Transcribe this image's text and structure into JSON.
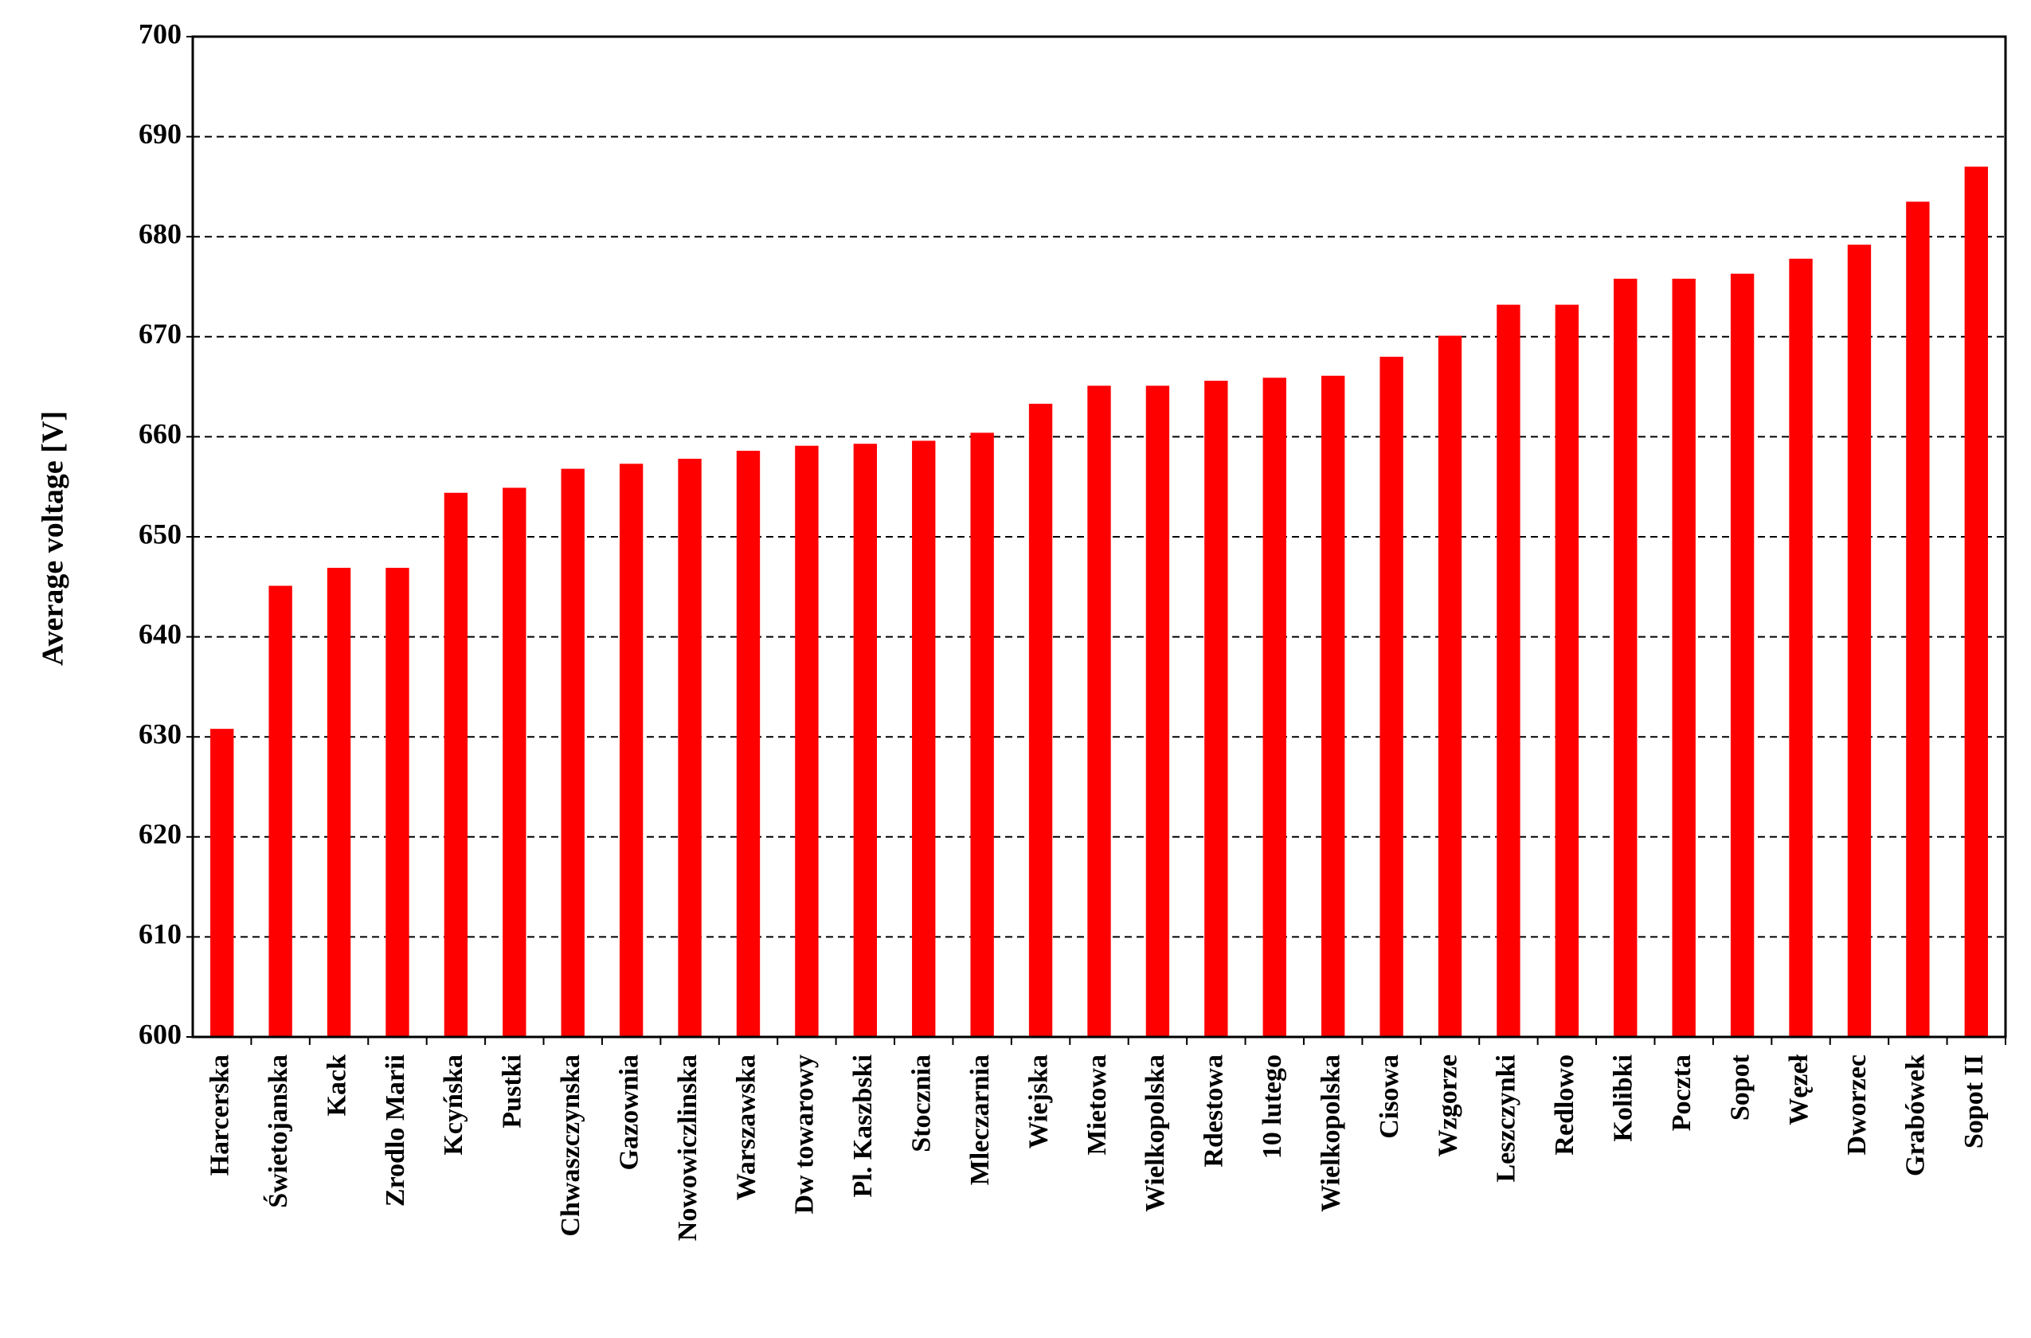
{
  "chart_data": {
    "type": "bar",
    "y_label": "Average voltage [V]",
    "categories": [
      "Harcerska",
      "Świetojanska",
      "Kack",
      "Zrodlo Marii",
      "Kcyńska",
      "Pustki",
      "Chwaszczynska",
      "Gazownia",
      "Nowowiczlinska",
      "Warszawska",
      "Dw towarowy",
      "Pl. Kaszbski",
      "Stocznia",
      "Mleczarnia",
      "Wiejska",
      "Mietowa",
      "Wielkopolska",
      "Rdestowa",
      "10 lutego",
      "Wielkopolska",
      "Cisowa",
      "Wzgorze",
      "Leszczynki",
      "Redlowo",
      "Kolibki",
      "Poczta",
      "Sopot",
      "Węzeł",
      "Dworzec",
      "Grabówek",
      "Sopot II"
    ],
    "values": [
      630.8,
      645.1,
      646.9,
      646.9,
      654.4,
      654.9,
      656.8,
      657.3,
      657.8,
      658.6,
      659.1,
      659.3,
      659.6,
      660.4,
      663.3,
      665.1,
      665.1,
      665.6,
      665.9,
      666.1,
      668.0,
      670.1,
      673.2,
      673.2,
      675.8,
      675.8,
      676.3,
      677.8,
      679.2,
      683.5,
      687.0
    ],
    "color": "#ff0000",
    "ylim": [
      600,
      700
    ],
    "yticks": [
      600,
      610,
      620,
      630,
      640,
      650,
      660,
      670,
      680,
      690,
      700
    ],
    "grid": true
  }
}
